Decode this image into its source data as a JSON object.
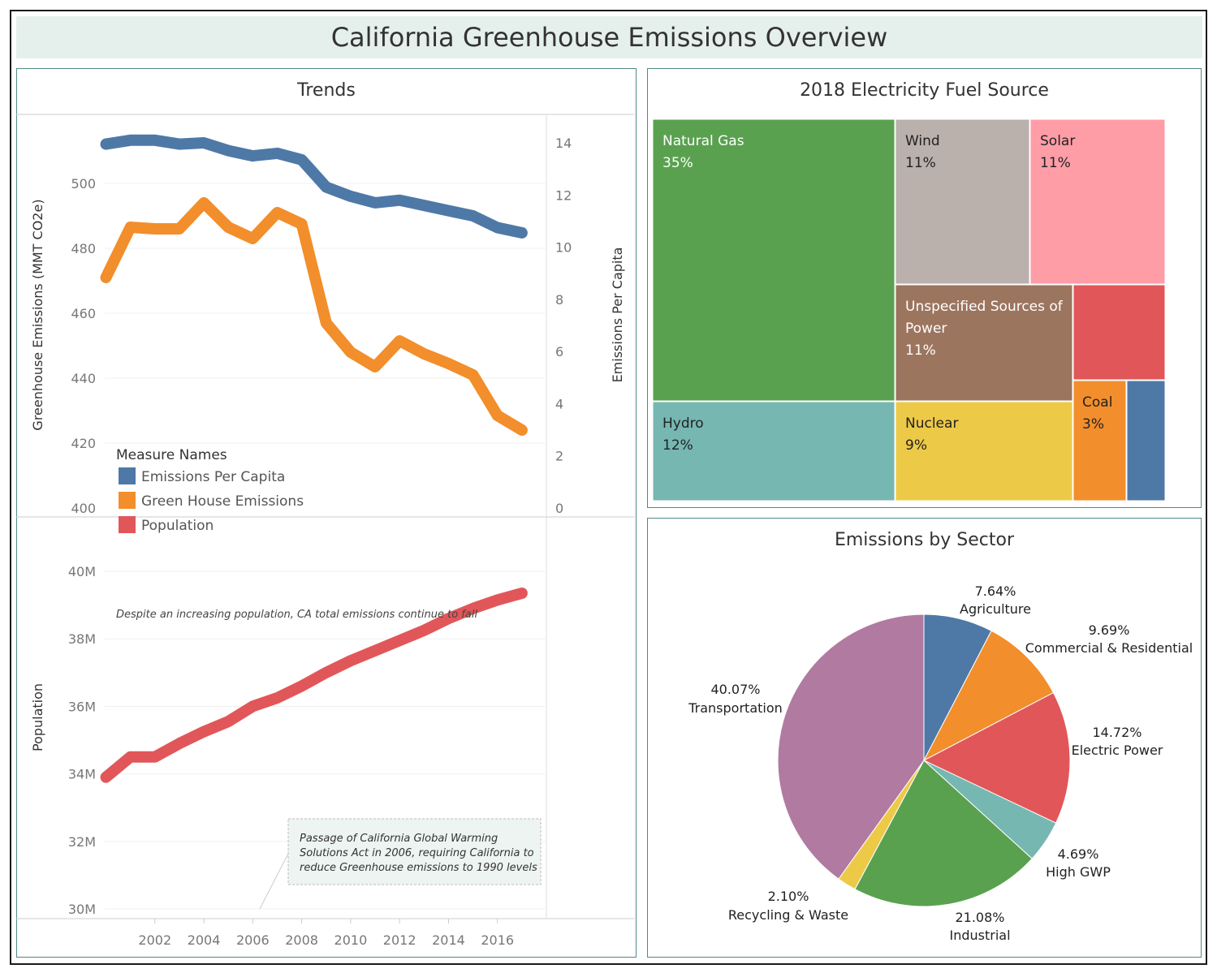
{
  "page": {
    "title": "California Greenhouse Emissions Overview",
    "colors": {
      "title_bg": "#e5f0ed",
      "panel_border": "#4f8a86",
      "blue": "#4e79a7",
      "orange": "#f28e2b",
      "red": "#e15759",
      "teal": "#76b7b2",
      "green": "#59a14f",
      "yellow": "#edc948",
      "purple": "#b07aa1",
      "pink": "#ff9da7",
      "brown": "#9c755f",
      "grey": "#bab0ac"
    }
  },
  "chart_data": [
    {
      "type": "line",
      "panel_title": "Trends",
      "x": [
        2000,
        2001,
        2002,
        2003,
        2004,
        2005,
        2006,
        2007,
        2008,
        2009,
        2010,
        2011,
        2012,
        2013,
        2014,
        2015,
        2016,
        2017
      ],
      "x_ticks": [
        2002,
        2004,
        2006,
        2008,
        2010,
        2012,
        2014,
        2016
      ],
      "top_pane": {
        "ylabel_left": "Greenhouse Emissions (MMT CO2e)",
        "ylim_left": [
          400,
          515
        ],
        "yticks_left": [
          400,
          420,
          440,
          460,
          480,
          500
        ],
        "ylabel_right": "Emissions Per Capita",
        "ylim_right": [
          0,
          15
        ],
        "yticks_right": [
          0,
          2,
          4,
          6,
          8,
          10,
          12,
          14
        ],
        "series": [
          {
            "name": "Green House Emissions",
            "axis": "left",
            "color": "#f28e2b",
            "values": [
              471,
              486.5,
              486,
              486,
              494,
              486.5,
              483,
              491,
              487.5,
              457,
              448,
              443.5,
              451.5,
              447.5,
              444.5,
              441,
              428.5,
              424
            ]
          },
          {
            "name": "Emissions Per Capita",
            "axis": "right",
            "color": "#4e79a7",
            "values": [
              13.95,
              14.1,
              14.1,
              13.95,
              14.0,
              13.7,
              13.5,
              13.6,
              13.35,
              12.3,
              11.95,
              11.7,
              11.8,
              11.6,
              11.4,
              11.2,
              10.75,
              10.55
            ]
          }
        ]
      },
      "bottom_pane": {
        "ylabel": "Population",
        "ylim": [
          29.7,
          41.0
        ],
        "yticks": [
          30,
          32,
          34,
          36,
          38,
          40
        ],
        "ytick_labels": [
          "30M",
          "32M",
          "34M",
          "36M",
          "38M",
          "40M"
        ],
        "series": [
          {
            "name": "Population",
            "color": "#e15759",
            "values": [
              33.9,
              34.5,
              34.5,
              34.9,
              35.25,
              35.55,
              36.0,
              36.25,
              36.6,
              37.0,
              37.35,
              37.65,
              37.95,
              38.25,
              38.6,
              38.9,
              39.15,
              39.35
            ]
          }
        ],
        "annotation_top": "Despite an increasing population, CA total emissions continue to fall",
        "annotation_box": [
          "Passage of California Global Warming",
          "Solutions Act in 2006, requiring California to",
          "reduce Greenhouse emissions to 1990 levels"
        ]
      },
      "legend": {
        "title": "Measure Names",
        "items": [
          {
            "label": "Emissions Per Capita",
            "color": "#4e79a7"
          },
          {
            "label": "Green House Emissions",
            "color": "#f28e2b"
          },
          {
            "label": "Population",
            "color": "#e15759"
          }
        ]
      }
    },
    {
      "type": "treemap",
      "panel_title": "2018 Electricity Fuel Source",
      "items": [
        {
          "name": "Natural Gas",
          "value_label": "35%",
          "color": "#59a14f",
          "label_color": "#ffffff"
        },
        {
          "name": "Wind",
          "value_label": "11%",
          "color": "#bab0ac",
          "label_color": "#222222"
        },
        {
          "name": "Solar",
          "value_label": "11%",
          "color": "#ff9da7",
          "label_color": "#222222"
        },
        {
          "name": "Unspecified Sources of",
          "name_line2": "Power",
          "value_label": "11%",
          "color": "#9c755f",
          "label_color": "#ffffff"
        },
        {
          "name": "",
          "value_label": "",
          "color": "#e15759",
          "label_color": "#ffffff"
        },
        {
          "name": "Hydro",
          "value_label": "12%",
          "color": "#76b7b2",
          "label_color": "#222222"
        },
        {
          "name": "Nuclear",
          "value_label": "9%",
          "color": "#edc948",
          "label_color": "#222222"
        },
        {
          "name": "Coal",
          "value_label": "3%",
          "color": "#f28e2b",
          "label_color": "#222222"
        },
        {
          "name": "",
          "value_label": "",
          "color": "#4e79a7",
          "label_color": "#ffffff"
        }
      ]
    },
    {
      "type": "pie",
      "panel_title": "Emissions by Sector",
      "slices": [
        {
          "label": "Agriculture",
          "pct": 7.64,
          "pct_label": "7.64%",
          "color": "#4e79a7"
        },
        {
          "label": "Commercial & Residential",
          "pct": 9.69,
          "pct_label": "9.69%",
          "color": "#f28e2b"
        },
        {
          "label": "Electric Power",
          "pct": 14.72,
          "pct_label": "14.72%",
          "color": "#e15759"
        },
        {
          "label": "High GWP",
          "pct": 4.69,
          "pct_label": "4.69%",
          "color": "#76b7b2"
        },
        {
          "label": "Industrial",
          "pct": 21.08,
          "pct_label": "21.08%",
          "color": "#59a14f"
        },
        {
          "label": "Recycling & Waste",
          "pct": 2.1,
          "pct_label": "2.10%",
          "color": "#edc948"
        },
        {
          "label": "Transportation",
          "pct": 40.07,
          "pct_label": "40.07%",
          "color": "#b07aa1"
        }
      ]
    }
  ]
}
